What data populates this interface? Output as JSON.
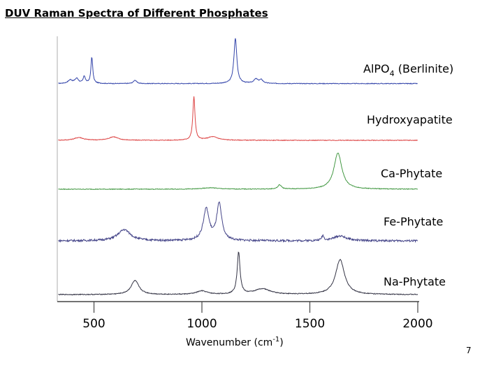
{
  "slide": {
    "title": "DUV Raman Spectra of Different Phosphates",
    "page_number": "7"
  },
  "chart_data": {
    "type": "line",
    "title": "",
    "xlabel_main": "Wavenumber (cm",
    "xlabel_sup": "-1",
    "xlabel_end": ")",
    "xlim": [
      330,
      2000
    ],
    "x_ticks": [
      500,
      1000,
      1500,
      2000
    ],
    "x_tick_labels": [
      "500",
      "1000",
      "1500",
      "2000"
    ],
    "grid": false,
    "series": [
      {
        "name_main": "AlPO",
        "name_sub": "4",
        "name_end": " (Berlinite)",
        "color": "#3344aa",
        "baseline": 0.3,
        "noise": 0.5,
        "peaks": [
          [
            390,
            5,
            12
          ],
          [
            420,
            7,
            10
          ],
          [
            455,
            10,
            6
          ],
          [
            490,
            38,
            5
          ],
          [
            690,
            5,
            8
          ],
          [
            1155,
            65,
            8
          ],
          [
            1250,
            6,
            12
          ],
          [
            1275,
            5,
            10
          ]
        ]
      },
      {
        "name": "Hydroxyapatite",
        "color": "#dd4444",
        "baseline": 0,
        "noise": 0.5,
        "peaks": [
          [
            430,
            4,
            25
          ],
          [
            590,
            5,
            25
          ],
          [
            963,
            62,
            6
          ],
          [
            1050,
            5,
            30
          ]
        ]
      },
      {
        "name": "Ca-Phytate",
        "color": "#449944",
        "baseline": 0,
        "noise": 0.5,
        "peaks": [
          [
            1040,
            2,
            40
          ],
          [
            1360,
            6,
            10
          ],
          [
            1630,
            52,
            22
          ]
        ]
      },
      {
        "name": "Fe-Phytate",
        "color": "#444488",
        "baseline": 0,
        "noise": 1.4,
        "peaks": [
          [
            640,
            16,
            35
          ],
          [
            1020,
            45,
            16
          ],
          [
            1080,
            52,
            14
          ],
          [
            1560,
            7,
            6
          ],
          [
            1640,
            7,
            35
          ]
        ]
      },
      {
        "name": "Na-Phytate",
        "color": "#333344",
        "baseline": 0,
        "noise": 0.6,
        "peaks": [
          [
            690,
            20,
            22
          ],
          [
            1000,
            5,
            30
          ],
          [
            1170,
            60,
            8
          ],
          [
            1280,
            8,
            45
          ],
          [
            1640,
            50,
            25
          ]
        ]
      }
    ]
  }
}
